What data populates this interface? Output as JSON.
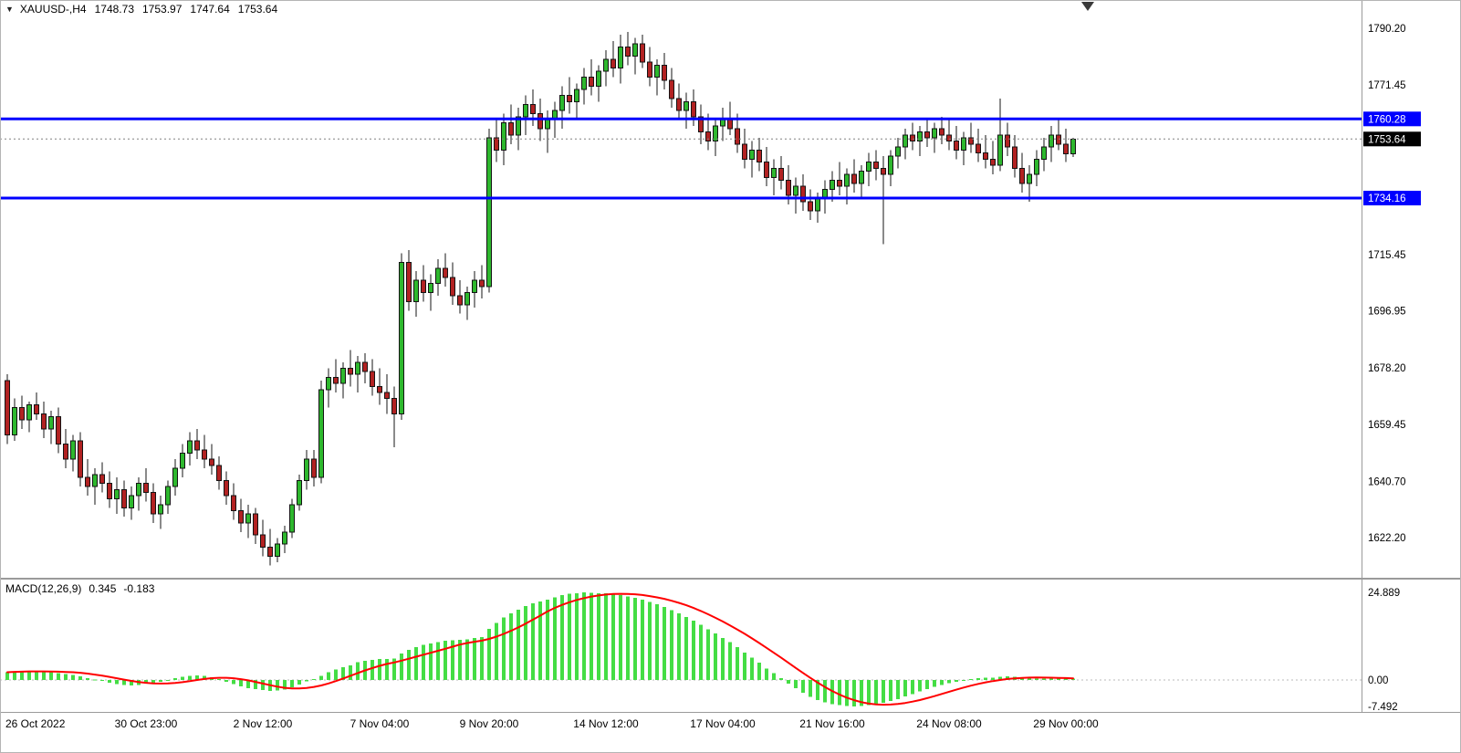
{
  "header": {
    "collapse_icon": "▼",
    "symbol_period": "XAUUSD-,H4",
    "open": "1748.73",
    "high": "1753.97",
    "low": "1747.64",
    "close": "1753.64"
  },
  "chart_data": {
    "type": "candlestick",
    "title": "XAUUSD- H4 with MACD(12,26,9)",
    "legend_position": "top-left",
    "grid": "off",
    "price_axis": {
      "max": 1799.5,
      "min": 1608.9,
      "ticks": [
        "1790.20",
        "1771.45",
        "1715.45",
        "1696.95",
        "1678.20",
        "1659.45",
        "1640.70",
        "1622.20"
      ]
    },
    "macd_axis": {
      "max": 28.3,
      "min": -9.1
    },
    "hlines": [
      {
        "price": 1760.28,
        "label": "1760.28",
        "color": "#0000ff"
      },
      {
        "price": 1734.16,
        "label": "1734.16",
        "color": "#0000ff"
      }
    ],
    "bid": {
      "price": 1753.64,
      "label": "1753.64"
    },
    "time_axis": [
      {
        "label": "26 Oct 2022",
        "index": 0,
        "align": "start"
      },
      {
        "label": "30 Oct 23:00",
        "index": 19
      },
      {
        "label": "2 Nov 12:00",
        "index": 35
      },
      {
        "label": "7 Nov 04:00",
        "index": 51
      },
      {
        "label": "9 Nov 20:00",
        "index": 66
      },
      {
        "label": "14 Nov 12:00",
        "index": 82
      },
      {
        "label": "17 Nov 04:00",
        "index": 98
      },
      {
        "label": "21 Nov 16:00",
        "index": 113
      },
      {
        "label": "24 Nov 08:00",
        "index": 129
      },
      {
        "label": "29 Nov 00:00",
        "index": 145
      }
    ],
    "candles": [
      [
        1674,
        1676,
        1653,
        1656
      ],
      [
        1656,
        1668,
        1654,
        1665
      ],
      [
        1665,
        1669,
        1658,
        1661
      ],
      [
        1661,
        1667,
        1657,
        1666
      ],
      [
        1666,
        1670,
        1661,
        1663
      ],
      [
        1663,
        1667,
        1655,
        1658
      ],
      [
        1658,
        1664,
        1653,
        1662
      ],
      [
        1662,
        1665,
        1650,
        1653
      ],
      [
        1653,
        1658,
        1645,
        1648
      ],
      [
        1648,
        1656,
        1644,
        1654
      ],
      [
        1654,
        1657,
        1639,
        1642
      ],
      [
        1642,
        1648,
        1636,
        1639
      ],
      [
        1639,
        1645,
        1633,
        1643
      ],
      [
        1643,
        1647,
        1637,
        1640
      ],
      [
        1640,
        1644,
        1632,
        1635
      ],
      [
        1635,
        1642,
        1630,
        1638
      ],
      [
        1638,
        1641,
        1629,
        1632
      ],
      [
        1632,
        1639,
        1628,
        1636
      ],
      [
        1636,
        1642,
        1631,
        1640
      ],
      [
        1640,
        1645,
        1634,
        1637
      ],
      [
        1637,
        1640,
        1627,
        1630
      ],
      [
        1630,
        1636,
        1625,
        1633
      ],
      [
        1633,
        1641,
        1630,
        1639
      ],
      [
        1639,
        1648,
        1636,
        1645
      ],
      [
        1645,
        1653,
        1642,
        1650
      ],
      [
        1650,
        1657,
        1646,
        1654
      ],
      [
        1654,
        1658,
        1648,
        1651
      ],
      [
        1651,
        1656,
        1645,
        1648
      ],
      [
        1648,
        1653,
        1643,
        1646
      ],
      [
        1646,
        1649,
        1638,
        1641
      ],
      [
        1641,
        1644,
        1633,
        1636
      ],
      [
        1636,
        1640,
        1628,
        1631
      ],
      [
        1631,
        1635,
        1624,
        1627
      ],
      [
        1627,
        1633,
        1622,
        1630
      ],
      [
        1630,
        1632,
        1620,
        1623
      ],
      [
        1623,
        1628,
        1616,
        1619
      ],
      [
        1619,
        1625,
        1613,
        1616
      ],
      [
        1616,
        1622,
        1614,
        1620
      ],
      [
        1620,
        1626,
        1617,
        1624
      ],
      [
        1624,
        1635,
        1622,
        1633
      ],
      [
        1633,
        1643,
        1631,
        1641
      ],
      [
        1641,
        1651,
        1638,
        1648
      ],
      [
        1648,
        1651,
        1639,
        1642
      ],
      [
        1642,
        1674,
        1640,
        1671
      ],
      [
        1671,
        1678,
        1665,
        1675
      ],
      [
        1675,
        1681,
        1670,
        1673
      ],
      [
        1673,
        1680,
        1668,
        1678
      ],
      [
        1678,
        1684,
        1672,
        1676
      ],
      [
        1676,
        1682,
        1670,
        1680
      ],
      [
        1680,
        1683,
        1673,
        1677
      ],
      [
        1677,
        1681,
        1669,
        1672
      ],
      [
        1672,
        1678,
        1666,
        1670
      ],
      [
        1670,
        1676,
        1663,
        1668
      ],
      [
        1668,
        1672,
        1652,
        1663
      ],
      [
        1663,
        1716,
        1661,
        1713
      ],
      [
        1713,
        1717,
        1697,
        1700
      ],
      [
        1700,
        1710,
        1695,
        1707
      ],
      [
        1707,
        1712,
        1700,
        1703
      ],
      [
        1703,
        1709,
        1697,
        1706
      ],
      [
        1706,
        1714,
        1702,
        1711
      ],
      [
        1711,
        1716,
        1705,
        1708
      ],
      [
        1708,
        1713,
        1699,
        1702
      ],
      [
        1702,
        1707,
        1696,
        1699
      ],
      [
        1699,
        1705,
        1694,
        1703
      ],
      [
        1703,
        1710,
        1698,
        1707
      ],
      [
        1707,
        1712,
        1701,
        1705
      ],
      [
        1705,
        1757,
        1703,
        1754
      ],
      [
        1754,
        1760,
        1746,
        1750
      ],
      [
        1750,
        1762,
        1745,
        1759
      ],
      [
        1759,
        1765,
        1752,
        1755
      ],
      [
        1755,
        1764,
        1750,
        1761
      ],
      [
        1761,
        1768,
        1755,
        1765
      ],
      [
        1765,
        1770,
        1758,
        1762
      ],
      [
        1762,
        1767,
        1753,
        1757
      ],
      [
        1757,
        1763,
        1749,
        1760
      ],
      [
        1760,
        1766,
        1754,
        1763
      ],
      [
        1763,
        1771,
        1757,
        1768
      ],
      [
        1768,
        1774,
        1762,
        1766
      ],
      [
        1766,
        1772,
        1760,
        1770
      ],
      [
        1770,
        1777,
        1765,
        1774
      ],
      [
        1774,
        1780,
        1768,
        1771
      ],
      [
        1771,
        1778,
        1766,
        1776
      ],
      [
        1776,
        1783,
        1771,
        1780
      ],
      [
        1780,
        1786,
        1774,
        1777
      ],
      [
        1777,
        1788,
        1772,
        1784
      ],
      [
        1784,
        1789,
        1778,
        1781
      ],
      [
        1781,
        1787,
        1775,
        1785
      ],
      [
        1785,
        1788,
        1777,
        1779
      ],
      [
        1779,
        1784,
        1771,
        1774
      ],
      [
        1774,
        1780,
        1768,
        1778
      ],
      [
        1778,
        1782,
        1770,
        1773
      ],
      [
        1773,
        1777,
        1764,
        1767
      ],
      [
        1767,
        1772,
        1760,
        1763
      ],
      [
        1763,
        1769,
        1757,
        1766
      ],
      [
        1766,
        1770,
        1758,
        1761
      ],
      [
        1761,
        1765,
        1752,
        1756
      ],
      [
        1756,
        1762,
        1750,
        1753
      ],
      [
        1753,
        1760,
        1748,
        1758
      ],
      [
        1758,
        1764,
        1753,
        1760
      ],
      [
        1760,
        1766,
        1755,
        1757
      ],
      [
        1757,
        1762,
        1749,
        1752
      ],
      [
        1752,
        1757,
        1744,
        1747
      ],
      [
        1747,
        1753,
        1741,
        1750
      ],
      [
        1750,
        1754,
        1743,
        1746
      ],
      [
        1746,
        1751,
        1738,
        1741
      ],
      [
        1741,
        1747,
        1735,
        1744
      ],
      [
        1744,
        1748,
        1737,
        1740
      ],
      [
        1740,
        1745,
        1732,
        1735
      ],
      [
        1735,
        1741,
        1729,
        1738
      ],
      [
        1738,
        1742,
        1730,
        1733
      ],
      [
        1733,
        1737,
        1727,
        1730
      ],
      [
        1730,
        1736,
        1726,
        1734
      ],
      [
        1734,
        1740,
        1729,
        1737
      ],
      [
        1737,
        1743,
        1733,
        1740
      ],
      [
        1740,
        1746,
        1735,
        1738
      ],
      [
        1738,
        1744,
        1732,
        1742
      ],
      [
        1742,
        1747,
        1736,
        1739
      ],
      [
        1739,
        1745,
        1734,
        1743
      ],
      [
        1743,
        1749,
        1738,
        1746
      ],
      [
        1746,
        1750,
        1740,
        1744
      ],
      [
        1744,
        1748,
        1719,
        1742
      ],
      [
        1742,
        1750,
        1738,
        1748
      ],
      [
        1748,
        1754,
        1744,
        1751
      ],
      [
        1751,
        1757,
        1747,
        1755
      ],
      [
        1755,
        1759,
        1750,
        1753
      ],
      [
        1753,
        1758,
        1748,
        1756
      ],
      [
        1756,
        1760,
        1751,
        1754
      ],
      [
        1754,
        1759,
        1749,
        1757
      ],
      [
        1757,
        1761,
        1752,
        1755
      ],
      [
        1755,
        1760,
        1750,
        1753
      ],
      [
        1753,
        1758,
        1747,
        1750
      ],
      [
        1750,
        1756,
        1745,
        1754
      ],
      [
        1754,
        1759,
        1749,
        1752
      ],
      [
        1752,
        1757,
        1746,
        1749
      ],
      [
        1749,
        1755,
        1744,
        1747
      ],
      [
        1747,
        1753,
        1742,
        1745
      ],
      [
        1745,
        1767,
        1743,
        1755
      ],
      [
        1755,
        1759,
        1748,
        1751
      ],
      [
        1751,
        1755,
        1741,
        1744
      ],
      [
        1744,
        1749,
        1736,
        1739
      ],
      [
        1739,
        1745,
        1733,
        1742
      ],
      [
        1742,
        1750,
        1738,
        1747
      ],
      [
        1747,
        1754,
        1743,
        1751
      ],
      [
        1751,
        1758,
        1746,
        1755
      ],
      [
        1755,
        1760,
        1750,
        1752
      ],
      [
        1752,
        1757,
        1746,
        1748.7
      ],
      [
        1748.73,
        1753.97,
        1747.64,
        1753.64
      ]
    ],
    "macd": {
      "label": "MACD(12,26,9)",
      "value_main": "0.345",
      "value_signal": "-0.183",
      "axis_ticks": [
        "24.889",
        "0.00",
        "-7.492"
      ],
      "hist": [
        2.2,
        2.4,
        2.5,
        2.6,
        2.5,
        2.4,
        2.2,
        2.0,
        1.7,
        1.4,
        1.0,
        0.5,
        0.1,
        -0.3,
        -0.8,
        -1.2,
        -1.5,
        -1.6,
        -1.4,
        -1.1,
        -0.9,
        -0.5,
        0.0,
        0.5,
        0.9,
        1.2,
        1.3,
        1.2,
        0.8,
        0.2,
        -0.5,
        -1.2,
        -1.8,
        -2.3,
        -2.6,
        -2.9,
        -3.1,
        -3.0,
        -2.7,
        -2.1,
        -1.3,
        -0.4,
        0.2,
        1.2,
        2.2,
        3.0,
        3.6,
        4.2,
        5.0,
        5.4,
        5.7,
        5.9,
        6.0,
        6.1,
        7.5,
        8.6,
        9.4,
        10.0,
        10.4,
        10.8,
        11.1,
        11.3,
        11.4,
        11.6,
        11.9,
        12.2,
        14.5,
        16.2,
        17.8,
        19.0,
        20.0,
        21.0,
        21.8,
        22.3,
        22.9,
        23.5,
        24.1,
        24.5,
        24.7,
        24.889,
        24.8,
        24.7,
        24.6,
        24.3,
        24.1,
        23.8,
        23.4,
        22.9,
        22.2,
        21.5,
        20.8,
        19.9,
        18.9,
        17.9,
        16.9,
        15.7,
        14.4,
        13.2,
        12.0,
        10.8,
        9.4,
        7.8,
        6.3,
        4.9,
        3.3,
        1.9,
        0.5,
        -1.0,
        -2.3,
        -3.6,
        -4.8,
        -5.7,
        -6.4,
        -6.9,
        -7.2,
        -7.45,
        -7.492,
        -7.4,
        -7.2,
        -6.9,
        -6.5,
        -6.0,
        -5.4,
        -4.7,
        -4.0,
        -3.3,
        -2.6,
        -2.0,
        -1.4,
        -0.9,
        -0.5,
        -0.1,
        0.2,
        0.5,
        0.6,
        0.7,
        0.9,
        1.0,
        0.9,
        0.7,
        0.5,
        0.4,
        0.35,
        0.33,
        0.32,
        0.33,
        0.345
      ]
    },
    "colors": {
      "bull": "#2eb82e",
      "bear": "#b22222",
      "outline": "#141414",
      "wick": "#141414",
      "macd_hist": "#44dd44",
      "macd_signal": "#ff0000",
      "level": "#0000ff",
      "bid_badge": "#000000",
      "axis_text": "#000000",
      "separator": "#9a9a9a"
    }
  }
}
